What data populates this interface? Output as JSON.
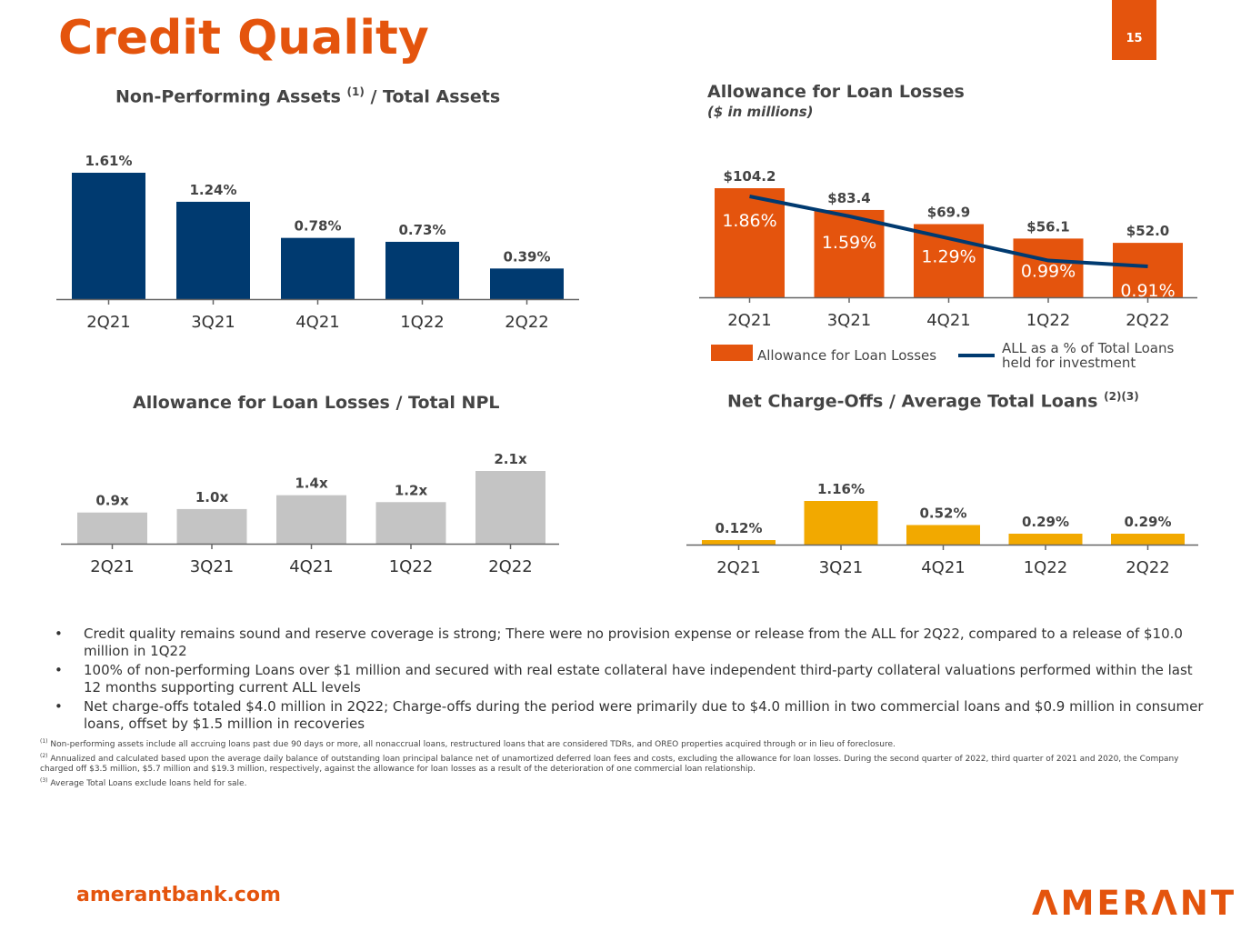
{
  "header": {
    "title": "Credit Quality",
    "page_number": "15"
  },
  "colors": {
    "accent": "#e4540d",
    "navy": "#003a70",
    "gray": "#c4c4c4",
    "gold": "#f2a900"
  },
  "chart_data": [
    {
      "id": "npa",
      "type": "bar",
      "title": "Non-Performing Assets",
      "title_sup": "(1)",
      "title_suffix": "/ Total Assets",
      "categories": [
        "2Q21",
        "3Q21",
        "4Q21",
        "1Q22",
        "2Q22"
      ],
      "values": [
        1.61,
        1.24,
        0.78,
        0.73,
        0.39
      ],
      "value_labels": [
        "1.61%",
        "1.24%",
        "0.78%",
        "0.73%",
        "0.39%"
      ],
      "ylim": [
        0,
        1.61
      ],
      "color": "#003a70"
    },
    {
      "id": "all",
      "type": "bar",
      "title": "Allowance for Loan Losses",
      "subtitle": "($ in millions)",
      "categories": [
        "2Q21",
        "3Q21",
        "4Q21",
        "1Q22",
        "2Q22"
      ],
      "series": [
        {
          "name": "Allowance for Loan Losses",
          "kind": "bar",
          "values": [
            104.2,
            83.4,
            69.9,
            56.1,
            52.0
          ],
          "value_labels": [
            "$104.2",
            "$83.4",
            "$69.9",
            "$56.1",
            "$52.0"
          ],
          "color": "#e4540d"
        },
        {
          "name": "ALL as a % of Total Loans held for investment",
          "kind": "line",
          "values": [
            1.86,
            1.59,
            1.29,
            0.99,
            0.91
          ],
          "value_labels": [
            "1.86%",
            "1.59%",
            "1.29%",
            "0.99%",
            "0.91%"
          ],
          "color": "#003a70"
        }
      ],
      "ylim": [
        0,
        104.2
      ],
      "legend": {
        "bar_label": "Allowance for Loan Losses",
        "line_label_1": "ALL as a % of Total Loans",
        "line_label_2": "held for investment",
        "placement": "bottom"
      }
    },
    {
      "id": "npl",
      "type": "bar",
      "title": "Allowance for Loan Losses / Total NPL",
      "categories": [
        "2Q21",
        "3Q21",
        "4Q21",
        "1Q22",
        "2Q22"
      ],
      "values": [
        0.9,
        1.0,
        1.4,
        1.2,
        2.1
      ],
      "value_labels": [
        "0.9x",
        "1.0x",
        "1.4x",
        "1.2x",
        "2.1x"
      ],
      "ylim": [
        0,
        2.1
      ],
      "color": "#c4c4c4"
    },
    {
      "id": "nco",
      "type": "bar",
      "title": "Net Charge-Offs / Average Total Loans",
      "title_sup": "(2)(3)",
      "categories": [
        "2Q21",
        "3Q21",
        "4Q21",
        "1Q22",
        "2Q22"
      ],
      "values": [
        0.12,
        1.16,
        0.52,
        0.29,
        0.29
      ],
      "value_labels": [
        "0.12%",
        "1.16%",
        "0.52%",
        "0.29%",
        "0.29%"
      ],
      "ylim": [
        0,
        1.16
      ],
      "color": "#f2a900"
    }
  ],
  "bullets": [
    "Credit quality remains sound and reserve coverage is strong; There were no provision expense or release from the ALL for 2Q22, compared to a release of $10.0 million in 1Q22",
    "100% of non-performing Loans over $1 million and secured with real estate collateral have independent third-party collateral valuations performed within the last 12 months supporting current ALL levels",
    "Net charge-offs totaled $4.0 million in 2Q22; Charge-offs during the period were primarily due to $4.0 million in two commercial loans and $0.9 million in consumer loans, offset by $1.5 million in recoveries"
  ],
  "footnotes": [
    {
      "mark": "(1)",
      "text": "Non-performing assets include all accruing loans past due 90 days or more, all nonaccrual loans, restructured loans that are considered TDRs, and OREO properties acquired through or in lieu of foreclosure."
    },
    {
      "mark": "(2)",
      "text": "Annualized and calculated based upon the average daily balance of outstanding loan principal balance net of unamortized deferred loan fees and costs, excluding the allowance for loan losses. During the second quarter of 2022, third quarter of 2021 and 2020, the Company charged off $3.5 million, $5.7 million and $19.3 million, respectively, against the allowance for loan losses as a result of the deterioration of one commercial loan relationship."
    },
    {
      "mark": "(3)",
      "text": "Average Total Loans exclude loans held for sale."
    }
  ],
  "footer": {
    "website": "amerantbank.com",
    "logo_text": "ΛMERΛNT"
  }
}
